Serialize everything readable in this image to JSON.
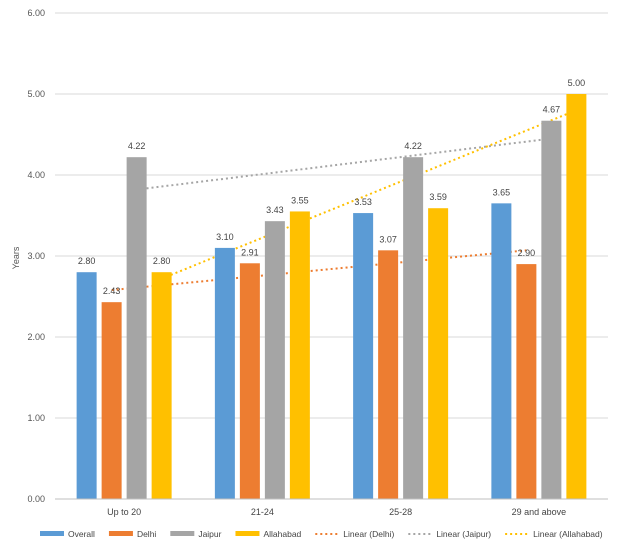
{
  "chart_data": {
    "type": "bar",
    "title": "",
    "xlabel": "",
    "ylabel": "Years",
    "ylim": [
      0,
      6
    ],
    "yticks": [
      "0.00",
      "1.00",
      "2.00",
      "3.00",
      "4.00",
      "5.00",
      "6.00"
    ],
    "grid": true,
    "legend_position": "bottom",
    "categories": [
      "Up to 20",
      "21-24",
      "25-28",
      "29 and above"
    ],
    "series": [
      {
        "name": "Overall",
        "color": "#5B9BD5",
        "values": [
          2.8,
          3.1,
          3.53,
          3.65
        ],
        "labels": [
          "2.80",
          "3.10",
          "3.53",
          "3.65"
        ]
      },
      {
        "name": "Delhi",
        "color": "#ED7D31",
        "values": [
          2.43,
          2.91,
          3.07,
          2.9
        ],
        "labels": [
          "2.43",
          "2.91",
          "3.07",
          "2.90"
        ]
      },
      {
        "name": "Jaipur",
        "color": "#A5A5A5",
        "values": [
          4.22,
          3.43,
          4.22,
          4.67
        ],
        "labels": [
          "4.22",
          "3.43",
          "4.22",
          "4.67"
        ]
      },
      {
        "name": "Allahabad",
        "color": "#FFC000",
        "values": [
          2.8,
          3.55,
          3.59,
          5.0
        ],
        "labels": [
          "2.80",
          "3.55",
          "3.59",
          "5.00"
        ]
      }
    ],
    "trendlines": [
      {
        "name": "Linear  (Delhi)",
        "series": "Delhi",
        "color": "#ED7D31",
        "start": 2.58,
        "end": 3.07
      },
      {
        "name": "Linear  (Jaipur)",
        "series": "Jaipur",
        "color": "#A5A5A5",
        "start": 3.82,
        "end": 4.45
      },
      {
        "name": "Linear  (Allahabad)",
        "series": "Allahabad",
        "color": "#FFC000",
        "start": 2.72,
        "end": 4.8
      }
    ]
  }
}
